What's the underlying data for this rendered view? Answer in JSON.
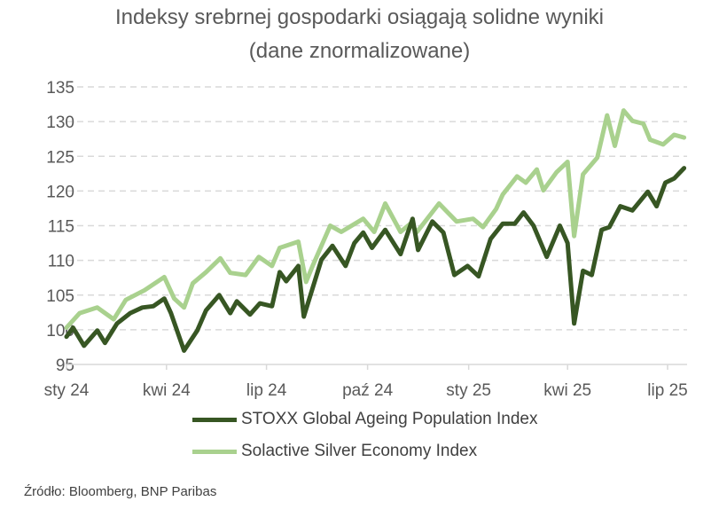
{
  "chart_data": {
    "type": "line",
    "title": "Indeksy srebrnej gospodarki osiągają solidne wyniki",
    "subtitle": "(dane znormalizowane)",
    "xlabel": "",
    "ylabel": "",
    "ylim": [
      95,
      135
    ],
    "yticks": [
      95,
      100,
      105,
      110,
      115,
      120,
      125,
      130,
      135
    ],
    "xlim": [
      "2024-01-01",
      "2025-07-19"
    ],
    "xticks": [
      {
        "date": "2024-01-01",
        "label": "sty 24"
      },
      {
        "date": "2024-04-01",
        "label": "kwi 24"
      },
      {
        "date": "2024-07-01",
        "label": "lip 24"
      },
      {
        "date": "2024-10-01",
        "label": "paź 24"
      },
      {
        "date": "2025-01-01",
        "label": "sty 25"
      },
      {
        "date": "2025-04-01",
        "label": "kwi 25"
      },
      {
        "date": "2025-07-01",
        "label": "lip 25"
      }
    ],
    "grid": "horizontal dashed",
    "legend_position": "bottom",
    "series": [
      {
        "name": "STOXX Global Ageing Population Index",
        "color": "#375623",
        "points": [
          [
            "2024-01-01",
            99.0
          ],
          [
            "2024-01-07",
            100.3
          ],
          [
            "2024-01-17",
            97.7
          ],
          [
            "2024-01-29",
            99.9
          ],
          [
            "2024-02-05",
            98.1
          ],
          [
            "2024-02-16",
            100.9
          ],
          [
            "2024-02-28",
            102.4
          ],
          [
            "2024-03-10",
            103.2
          ],
          [
            "2024-03-20",
            103.4
          ],
          [
            "2024-03-30",
            104.5
          ],
          [
            "2024-04-05",
            102.4
          ],
          [
            "2024-04-17",
            97.0
          ],
          [
            "2024-04-29",
            99.9
          ],
          [
            "2024-05-07",
            102.8
          ],
          [
            "2024-05-19",
            105.0
          ],
          [
            "2024-05-29",
            102.4
          ],
          [
            "2024-06-04",
            104.1
          ],
          [
            "2024-06-16",
            102.2
          ],
          [
            "2024-06-25",
            103.8
          ],
          [
            "2024-07-06",
            103.4
          ],
          [
            "2024-07-13",
            108.3
          ],
          [
            "2024-07-19",
            107.0
          ],
          [
            "2024-07-30",
            109.2
          ],
          [
            "2024-08-04",
            101.9
          ],
          [
            "2024-08-10",
            105.0
          ],
          [
            "2024-08-20",
            110.1
          ],
          [
            "2024-08-30",
            112.1
          ],
          [
            "2024-09-11",
            109.2
          ],
          [
            "2024-09-19",
            112.5
          ],
          [
            "2024-09-27",
            114.0
          ],
          [
            "2024-10-05",
            111.8
          ],
          [
            "2024-10-17",
            114.4
          ],
          [
            "2024-10-31",
            110.9
          ],
          [
            "2024-11-11",
            116.0
          ],
          [
            "2024-11-16",
            111.5
          ],
          [
            "2024-11-29",
            115.6
          ],
          [
            "2024-12-09",
            114.0
          ],
          [
            "2024-12-19",
            107.9
          ],
          [
            "2024-12-31",
            109.2
          ],
          [
            "2025-01-10",
            107.7
          ],
          [
            "2025-01-21",
            113.1
          ],
          [
            "2025-02-01",
            115.3
          ],
          [
            "2025-02-12",
            115.3
          ],
          [
            "2025-02-20",
            116.9
          ],
          [
            "2025-03-01",
            115.0
          ],
          [
            "2025-03-13",
            110.5
          ],
          [
            "2025-03-25",
            115.0
          ],
          [
            "2025-04-01",
            112.5
          ],
          [
            "2025-04-07",
            100.9
          ],
          [
            "2025-04-15",
            108.5
          ],
          [
            "2025-04-23",
            107.9
          ],
          [
            "2025-05-02",
            114.4
          ],
          [
            "2025-05-09",
            114.8
          ],
          [
            "2025-05-19",
            117.8
          ],
          [
            "2025-05-30",
            117.2
          ],
          [
            "2025-06-13",
            119.9
          ],
          [
            "2025-06-21",
            117.8
          ],
          [
            "2025-06-29",
            121.2
          ],
          [
            "2025-07-07",
            121.8
          ],
          [
            "2025-07-16",
            123.3
          ]
        ]
      },
      {
        "name": "Solactive Silver Economy Index",
        "color": "#A9D18E",
        "points": [
          [
            "2024-01-01",
            100.3
          ],
          [
            "2024-01-13",
            102.4
          ],
          [
            "2024-01-29",
            103.2
          ],
          [
            "2024-02-13",
            101.5
          ],
          [
            "2024-02-24",
            104.3
          ],
          [
            "2024-03-12",
            105.7
          ],
          [
            "2024-03-30",
            107.6
          ],
          [
            "2024-04-08",
            104.5
          ],
          [
            "2024-04-17",
            103.2
          ],
          [
            "2024-04-25",
            106.7
          ],
          [
            "2024-05-07",
            108.3
          ],
          [
            "2024-05-20",
            110.3
          ],
          [
            "2024-05-29",
            108.2
          ],
          [
            "2024-06-12",
            107.9
          ],
          [
            "2024-06-24",
            110.5
          ],
          [
            "2024-07-06",
            109.2
          ],
          [
            "2024-07-13",
            111.8
          ],
          [
            "2024-07-30",
            112.7
          ],
          [
            "2024-08-06",
            106.9
          ],
          [
            "2024-08-12",
            109.2
          ],
          [
            "2024-08-28",
            115.0
          ],
          [
            "2024-09-07",
            114.1
          ],
          [
            "2024-09-27",
            116.0
          ],
          [
            "2024-10-07",
            114.1
          ],
          [
            "2024-10-17",
            118.2
          ],
          [
            "2024-10-31",
            114.1
          ],
          [
            "2024-11-09",
            115.3
          ],
          [
            "2024-11-15",
            114.1
          ],
          [
            "2024-12-05",
            118.2
          ],
          [
            "2024-12-21",
            115.6
          ],
          [
            "2025-01-05",
            116.0
          ],
          [
            "2025-01-14",
            114.8
          ],
          [
            "2025-01-26",
            117.4
          ],
          [
            "2025-02-01",
            119.5
          ],
          [
            "2025-02-14",
            122.1
          ],
          [
            "2025-02-22",
            121.2
          ],
          [
            "2025-03-04",
            123.1
          ],
          [
            "2025-03-10",
            120.1
          ],
          [
            "2025-03-22",
            122.7
          ],
          [
            "2025-04-01",
            124.2
          ],
          [
            "2025-04-07",
            113.5
          ],
          [
            "2025-04-15",
            122.4
          ],
          [
            "2025-04-28",
            124.8
          ],
          [
            "2025-05-07",
            130.9
          ],
          [
            "2025-05-14",
            126.5
          ],
          [
            "2025-05-22",
            131.6
          ],
          [
            "2025-05-30",
            130.1
          ],
          [
            "2025-06-09",
            129.7
          ],
          [
            "2025-06-15",
            127.4
          ],
          [
            "2025-06-27",
            126.7
          ],
          [
            "2025-07-07",
            128.1
          ],
          [
            "2025-07-16",
            127.7
          ]
        ]
      }
    ]
  },
  "source": "Źródło: Bloomberg, BNP Paribas"
}
